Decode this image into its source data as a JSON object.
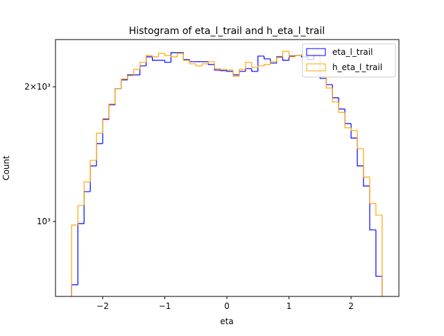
{
  "chart_data": {
    "type": "histogram",
    "title": "Histogram of eta_l_trail and h_eta_l_trail",
    "xlabel": "eta",
    "ylabel": "Count",
    "yscale": "log",
    "legend": "upper right",
    "bins": [
      -2.5,
      -2.4,
      -2.3,
      -2.2,
      -2.1,
      -2.0,
      -1.9,
      -1.8,
      -1.7,
      -1.6,
      -1.5,
      -1.4,
      -1.3,
      -1.2,
      -1.1,
      -1.0,
      -0.9,
      -0.8,
      -0.7,
      -0.6,
      -0.5,
      -0.4,
      -0.3,
      -0.2,
      -0.1,
      0.0,
      0.1,
      0.2,
      0.3,
      0.4,
      0.5,
      0.6,
      0.7,
      0.8,
      0.9,
      1.0,
      1.1,
      1.2,
      1.3,
      1.4,
      1.5,
      1.6,
      1.7,
      1.8,
      1.9,
      2.0,
      2.1,
      2.2,
      2.3,
      2.4,
      2.5
    ],
    "series": [
      {
        "name": "eta_l_trail",
        "color": "#0000ff",
        "values": [
          722,
          989,
          1166,
          1331,
          1493,
          1691,
          1823,
          1980,
          2073,
          2126,
          2126,
          2227,
          2333,
          2292,
          2292,
          2268,
          2384,
          2384,
          2300,
          2276,
          2276,
          2276,
          2243,
          2180,
          2173,
          2165,
          2126,
          2165,
          2196,
          2165,
          2342,
          2309,
          2259,
          2333,
          2292,
          2342,
          2350,
          2333,
          2300,
          2350,
          2088,
          2022,
          1890,
          1784,
          1655,
          1536,
          1331,
          1200,
          958,
          754
        ]
      },
      {
        "name": "h_eta_l_trail",
        "color": "#ffa500",
        "values": [
          982,
          1086,
          1226,
          1370,
          1575,
          1698,
          1830,
          1980,
          2081,
          2118,
          2188,
          2268,
          2350,
          2333,
          2375,
          2350,
          2333,
          2375,
          2292,
          2251,
          2227,
          2251,
          2276,
          2196,
          2188,
          2180,
          2111,
          2188,
          2268,
          2211,
          2227,
          2243,
          2276,
          2325,
          2401,
          2333,
          2350,
          2358,
          2367,
          2375,
          2111,
          1987,
          1850,
          1753,
          1620,
          1597,
          1455,
          1257,
          1097,
          1033
        ]
      }
    ],
    "xlim": [
      -2.76,
      2.77
    ],
    "xticks": [
      {
        "value": -2,
        "label": "−2"
      },
      {
        "value": -1,
        "label": "−1"
      },
      0,
      1,
      2
    ],
    "ylim": [
      680,
      2550
    ],
    "yticks": [
      {
        "value": 1000,
        "label": "10³"
      },
      {
        "value": 2000,
        "label": "2×10³"
      }
    ]
  }
}
